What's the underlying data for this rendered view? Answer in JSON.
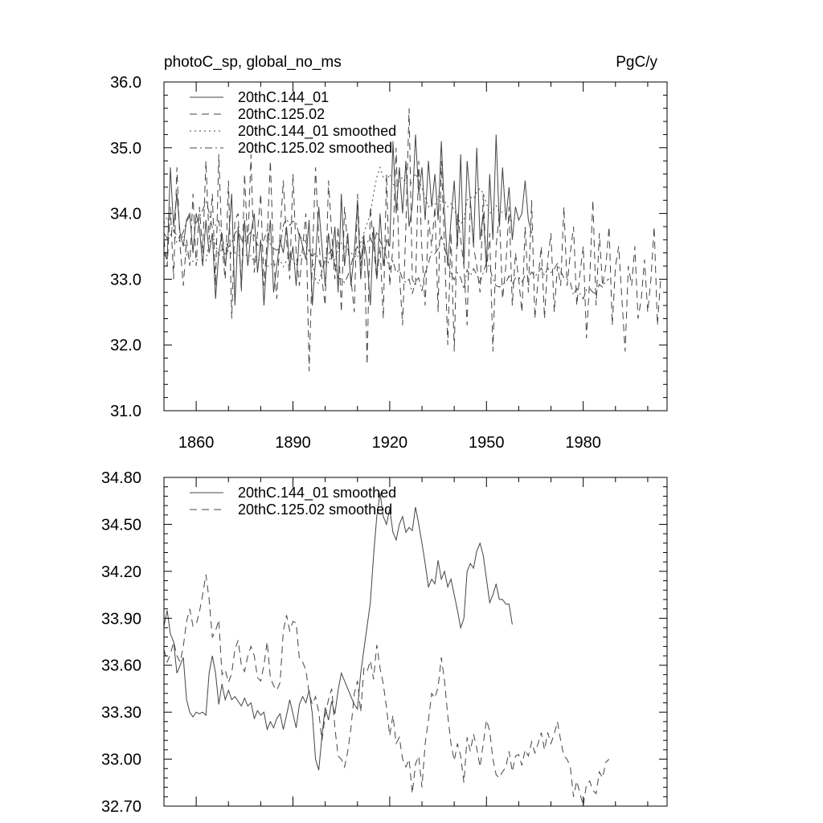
{
  "figure": {
    "title_left": "photoC_sp, global_no_ms",
    "title_right": "PgC/y"
  },
  "chart_data": [
    {
      "type": "line",
      "xlim": [
        1850,
        2006
      ],
      "ylim": [
        31.0,
        36.0
      ],
      "xticks": [
        1860,
        1890,
        1920,
        1950,
        1980
      ],
      "xtick_labels": [
        "1860",
        "1890",
        "1920",
        "1950",
        "1980"
      ],
      "yticks": [
        31.0,
        32.0,
        33.0,
        34.0,
        35.0,
        36.0
      ],
      "ytick_labels": [
        "31.0",
        "32.0",
        "33.0",
        "34.0",
        "35.0",
        "36.0"
      ],
      "grid": false,
      "legend_position": "top-left",
      "series": [
        {
          "name": "20thC.144_01",
          "dash": "solid",
          "x_start": 1850,
          "values": [
            33.4,
            33.3,
            34.7,
            33.8,
            34.3,
            33.7,
            33.5,
            33.9,
            34.0,
            33.4,
            34.0,
            33.8,
            33.2,
            33.9,
            33.4,
            33.7,
            32.7,
            33.4,
            33.7,
            33.2,
            33.6,
            34.3,
            32.6,
            33.8,
            32.9,
            33.9,
            33.2,
            33.7,
            34.0,
            33.1,
            33.6,
            32.6,
            33.4,
            33.9,
            32.8,
            33.2,
            33.6,
            33.4,
            33.8,
            33.2,
            33.5,
            32.9,
            33.7,
            33.5,
            33.3,
            33.9,
            32.6,
            33.3,
            34.1,
            33.5,
            32.9,
            33.7,
            33.3,
            33.8,
            32.8,
            34.3,
            33.2,
            33.7,
            32.9,
            33.4,
            34.2,
            33.0,
            33.6,
            33.3,
            32.6,
            33.8,
            33.0,
            34.0,
            33.2,
            33.6,
            33.5,
            35.1,
            34.0,
            34.7,
            34.0,
            34.8,
            33.8,
            34.1,
            35.2,
            34.3,
            34.7,
            33.9,
            34.8,
            34.1,
            34.6,
            33.9,
            35.1,
            34.0,
            33.2,
            33.9,
            34.5,
            33.5,
            34.9,
            33.2,
            34.8,
            34.2,
            33.5,
            35.0,
            33.6,
            34.0,
            33.2,
            34.6,
            33.6,
            35.2,
            33.8,
            34.7,
            33.9,
            34.4,
            33.6,
            34.1,
            33.9,
            34.0,
            34.5,
            33.9,
            33.7
          ],
          "smoothed": false
        },
        {
          "name": "20thC.125.02",
          "dash": "dashed",
          "x_start": 1850,
          "values": [
            33.6,
            33.2,
            34.1,
            33.0,
            34.7,
            33.5,
            32.9,
            33.6,
            33.2,
            34.3,
            33.2,
            34.1,
            33.4,
            34.8,
            33.6,
            34.3,
            32.9,
            34.9,
            33.5,
            33.0,
            34.5,
            32.4,
            33.9,
            34.0,
            32.8,
            34.6,
            33.5,
            34.9,
            33.1,
            33.7,
            34.3,
            32.9,
            33.6,
            34.8,
            33.3,
            32.7,
            33.7,
            34.5,
            33.6,
            33.0,
            34.6,
            33.4,
            32.9,
            33.5,
            34.0,
            31.6,
            33.3,
            34.7,
            33.6,
            33.0,
            32.6,
            34.5,
            33.7,
            33.0,
            33.8,
            32.5,
            34.1,
            33.5,
            33.0,
            32.5,
            34.3,
            33.2,
            33.7,
            31.7,
            34.1,
            33.5,
            33.0,
            33.5,
            32.4,
            34.6,
            32.9,
            33.5,
            35.0,
            33.1,
            32.3,
            33.8,
            35.6,
            33.0,
            32.9,
            34.8,
            33.4,
            32.6,
            33.9,
            33.5,
            34.1,
            32.5,
            34.8,
            33.5,
            32.0,
            33.7,
            31.9,
            34.0,
            33.6,
            33.2,
            32.3,
            34.2,
            33.5,
            33.2,
            32.8,
            34.3,
            33.1,
            33.7,
            31.9,
            33.5,
            34.0,
            32.7,
            33.2,
            34.1,
            32.6,
            33.4,
            33.0,
            32.5,
            33.8,
            32.8,
            34.2,
            32.4,
            33.0,
            33.5,
            32.4,
            33.3,
            33.7,
            32.5,
            33.2,
            32.9,
            34.1,
            32.9,
            33.4,
            33.8,
            32.6,
            33.1,
            33.5,
            32.1,
            33.0,
            34.2,
            32.6,
            33.7,
            32.9,
            33.2,
            33.8,
            32.3,
            33.2,
            33.5,
            32.7,
            31.9,
            33.2,
            32.9,
            33.5,
            32.4,
            32.7,
            33.3,
            32.5,
            33.0,
            33.8,
            32.3,
            33.0
          ],
          "smoothed": false
        },
        {
          "name": "20thC.144_01 smoothed",
          "dash": "dotted",
          "x_start": 1850,
          "values": [
            33.85,
            33.95,
            33.8,
            33.75,
            33.55,
            33.6,
            33.65,
            33.38,
            33.3,
            33.27,
            33.3,
            33.29,
            33.3,
            33.28,
            33.55,
            33.66,
            33.55,
            33.35,
            33.48,
            33.38,
            33.44,
            33.38,
            33.4,
            33.37,
            33.34,
            33.39,
            33.34,
            33.36,
            33.26,
            33.31,
            33.28,
            33.3,
            33.19,
            33.24,
            33.2,
            33.26,
            33.29,
            33.19,
            33.28,
            33.38,
            33.29,
            33.2,
            33.35,
            33.4,
            33.36,
            33.44,
            33.29,
            33.0,
            32.93,
            33.15,
            33.33,
            33.25,
            33.37,
            33.29,
            33.44,
            33.55,
            33.5,
            33.45,
            33.4,
            33.35,
            33.32,
            33.55,
            33.7,
            33.85,
            34.0,
            34.3,
            34.55,
            34.7,
            34.55,
            34.5,
            34.6,
            34.45,
            34.4,
            34.5,
            34.55,
            34.45,
            34.48,
            34.46,
            34.61,
            34.5,
            34.38,
            34.25,
            34.1,
            34.15,
            34.12,
            34.27,
            34.15,
            34.2,
            34.1,
            34.15,
            34.05,
            33.95,
            33.84,
            33.9,
            34.2,
            34.25,
            34.22,
            34.33,
            34.38,
            34.3,
            34.15,
            34.0,
            34.05,
            34.12,
            34.02,
            34.02,
            33.99,
            33.99,
            33.86
          ],
          "smoothed": true
        },
        {
          "name": "20thC.125.02 smoothed",
          "dash": "dashdot",
          "x_start": 1850,
          "values": [
            33.7,
            33.62,
            33.67,
            33.75,
            33.66,
            33.62,
            33.72,
            33.88,
            33.96,
            33.85,
            33.86,
            33.94,
            34.05,
            34.18,
            34.02,
            33.78,
            33.82,
            33.89,
            33.54,
            33.57,
            33.49,
            33.55,
            33.7,
            33.76,
            33.6,
            33.56,
            33.66,
            33.72,
            33.66,
            33.52,
            33.5,
            33.6,
            33.75,
            33.52,
            33.47,
            33.44,
            33.49,
            33.82,
            33.92,
            33.82,
            33.88,
            33.87,
            33.64,
            33.62,
            33.57,
            33.42,
            33.35,
            33.4,
            33.3,
            33.12,
            33.28,
            33.38,
            33.45,
            33.2,
            33.02,
            33.0,
            32.95,
            33.05,
            33.2,
            33.42,
            33.5,
            33.3,
            33.58,
            33.56,
            33.63,
            33.51,
            33.73,
            33.58,
            33.48,
            33.33,
            33.15,
            33.28,
            33.1,
            33.14,
            33.0,
            32.95,
            33.0,
            32.78,
            32.97,
            33.02,
            32.82,
            33.1,
            33.25,
            33.42,
            33.39,
            33.46,
            33.65,
            33.5,
            33.28,
            33.1,
            32.99,
            33.1,
            33.02,
            32.85,
            33.14,
            33.05,
            33.16,
            33.07,
            32.95,
            33.1,
            33.25,
            33.18,
            33.0,
            32.9,
            32.88,
            32.92,
            32.95,
            33.05,
            32.92,
            33.02,
            33.03,
            32.96,
            33.06,
            33.02,
            33.11,
            33.04,
            33.1,
            33.17,
            33.06,
            33.17,
            33.1,
            33.16,
            33.24,
            33.12,
            33.02,
            33.0,
            32.95,
            32.76,
            32.86,
            32.78,
            32.7,
            32.84,
            32.86,
            32.8,
            32.78,
            32.92,
            32.88,
            32.98,
            33.0
          ],
          "smoothed": true
        }
      ]
    },
    {
      "type": "line",
      "xlim": [
        1850,
        2006
      ],
      "ylim": [
        32.7,
        34.8
      ],
      "yticks": [
        32.7,
        33.0,
        33.3,
        33.6,
        33.9,
        34.2,
        34.5,
        34.8
      ],
      "ytick_labels": [
        "32.70",
        "33.00",
        "33.30",
        "33.60",
        "33.90",
        "34.20",
        "34.50",
        "34.80"
      ],
      "grid": false,
      "legend_position": "top-left",
      "series": [
        {
          "name": "20thC.144_01 smoothed",
          "dash": "solid",
          "x_start": 1850,
          "ref": "top.2"
        },
        {
          "name": "20thC.125.02 smoothed",
          "dash": "dashed",
          "x_start": 1850,
          "ref": "top.3"
        }
      ]
    }
  ]
}
